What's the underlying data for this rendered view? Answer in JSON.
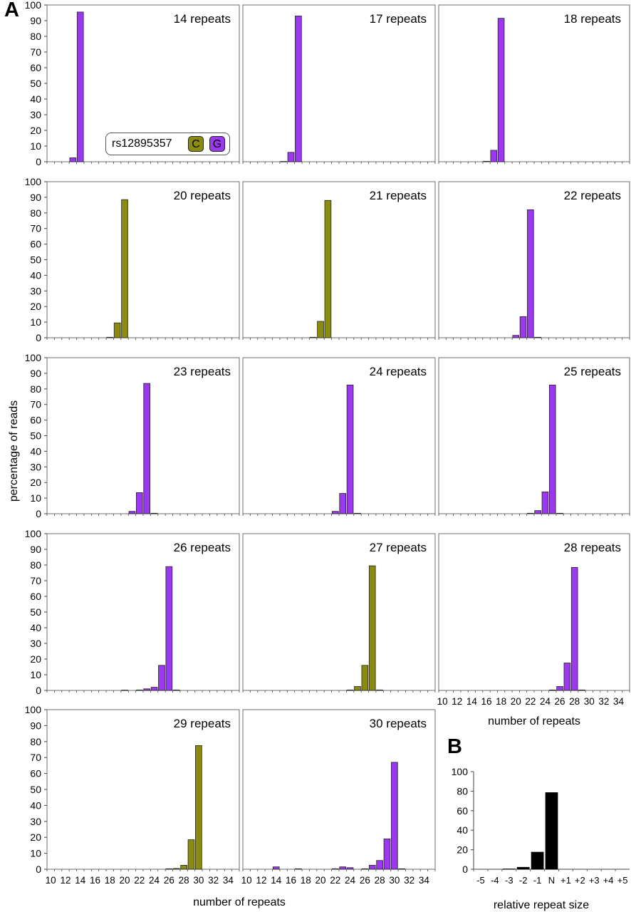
{
  "figure": {
    "panel_a_label": "A",
    "panel_b_label": "B",
    "ylabel": "percentage of reads",
    "xlabel_left": "number of repeats",
    "xlabel_middle": "number of repeats",
    "xlabel_right": "number of repeats",
    "xlabel_b": "relative repeat size"
  },
  "legend": {
    "snp": "rs12895357",
    "alleles": [
      "C",
      "G"
    ]
  },
  "colors": {
    "C": "#8b8b0f",
    "G": "#9b38f0",
    "black": "#000000"
  },
  "chart_data": [
    {
      "type": "bar",
      "title": "14 repeats",
      "allele": "G",
      "x": [
        13,
        14
      ],
      "values": [
        2.5,
        95.5
      ],
      "ylim": [
        0,
        100
      ],
      "yticks": [
        0,
        10,
        20,
        30,
        40,
        50,
        60,
        70,
        80,
        90,
        100
      ],
      "xlim": [
        10,
        35
      ]
    },
    {
      "type": "bar",
      "title": "17 repeats",
      "allele": "G",
      "x": [
        15,
        16,
        17
      ],
      "values": [
        0.2,
        6,
        93
      ],
      "ylim": [
        0,
        100
      ],
      "xlim": [
        10,
        35
      ]
    },
    {
      "type": "bar",
      "title": "18 repeats",
      "allele": "G",
      "x": [
        16,
        17,
        18
      ],
      "values": [
        0.3,
        7.3,
        91.5
      ],
      "ylim": [
        0,
        100
      ],
      "xlim": [
        10,
        35
      ]
    },
    {
      "type": "bar",
      "title": "20 repeats",
      "allele": "C",
      "x": [
        18,
        19,
        20
      ],
      "values": [
        0.3,
        9.5,
        88.5
      ],
      "ylim": [
        0,
        100
      ],
      "yticks": [
        0,
        10,
        20,
        30,
        40,
        50,
        60,
        70,
        80,
        90,
        100
      ],
      "xlim": [
        10,
        35
      ]
    },
    {
      "type": "bar",
      "title": "21 repeats",
      "allele": "C",
      "x": [
        19,
        20,
        21
      ],
      "values": [
        0.3,
        10.5,
        88
      ],
      "ylim": [
        0,
        100
      ],
      "xlim": [
        10,
        35
      ]
    },
    {
      "type": "bar",
      "title": "22 repeats",
      "allele": "G",
      "x": [
        20,
        21,
        22,
        23
      ],
      "values": [
        1.5,
        13.5,
        82,
        0.3
      ],
      "ylim": [
        0,
        100
      ],
      "xlim": [
        10,
        35
      ]
    },
    {
      "type": "bar",
      "title": "23 repeats",
      "allele": "G",
      "x": [
        21,
        22,
        23,
        24
      ],
      "values": [
        1.5,
        13.5,
        83.5,
        0.3
      ],
      "ylim": [
        0,
        100
      ],
      "yticks": [
        0,
        10,
        20,
        30,
        40,
        50,
        60,
        70,
        80,
        90,
        100
      ],
      "xlim": [
        10,
        35
      ]
    },
    {
      "type": "bar",
      "title": "24 repeats",
      "allele": "G",
      "x": [
        22,
        23,
        24,
        25
      ],
      "values": [
        1.5,
        13,
        82.5,
        0.3
      ],
      "ylim": [
        0,
        100
      ],
      "xlim": [
        10,
        35
      ]
    },
    {
      "type": "bar",
      "title": "25 repeats",
      "allele": "G",
      "x": [
        22,
        23,
        24,
        25,
        26
      ],
      "values": [
        0.3,
        2,
        14,
        82.5,
        0.3
      ],
      "ylim": [
        0,
        100
      ],
      "xlim": [
        10,
        35
      ]
    },
    {
      "type": "bar",
      "title": "26 repeats",
      "allele": "G",
      "x": [
        20,
        22,
        23,
        24,
        25,
        26,
        27
      ],
      "values": [
        0.2,
        0.3,
        1,
        2,
        16,
        79,
        0.3
      ],
      "ylim": [
        0,
        100
      ],
      "yticks": [
        0,
        10,
        20,
        30,
        40,
        50,
        60,
        70,
        80,
        90,
        100
      ],
      "xlim": [
        10,
        35
      ]
    },
    {
      "type": "bar",
      "title": "27 repeats",
      "allele": "C",
      "x": [
        24,
        25,
        26,
        27,
        28
      ],
      "values": [
        0.3,
        2.5,
        16,
        79.5,
        0.3
      ],
      "ylim": [
        0,
        100
      ],
      "xlim": [
        10,
        35
      ]
    },
    {
      "type": "bar",
      "title": "28 repeats",
      "allele": "G",
      "x": [
        25,
        26,
        27,
        28,
        29
      ],
      "values": [
        0.3,
        2.5,
        17.5,
        78.5,
        0.3
      ],
      "ylim": [
        0,
        100
      ],
      "xlim": [
        10,
        35
      ],
      "xticks": [
        10,
        12,
        14,
        16,
        18,
        20,
        22,
        24,
        26,
        28,
        30,
        32,
        34
      ]
    },
    {
      "type": "bar",
      "title": "29 repeats",
      "allele": "C",
      "x": [
        26,
        27,
        28,
        29,
        30
      ],
      "values": [
        0.3,
        0.5,
        2.5,
        18.5,
        77.5
      ],
      "ylim": [
        0,
        100
      ],
      "yticks": [
        0,
        10,
        20,
        30,
        40,
        50,
        60,
        70,
        80,
        90,
        100
      ],
      "xlim": [
        10,
        35
      ],
      "xticks": [
        10,
        12,
        14,
        16,
        18,
        20,
        22,
        24,
        26,
        28,
        30,
        32,
        34
      ]
    },
    {
      "type": "bar",
      "title": "30 repeats",
      "allele": "G",
      "x": [
        14,
        17,
        22,
        23,
        24,
        26,
        27,
        28,
        29,
        30,
        31
      ],
      "values": [
        1.5,
        0.3,
        0.3,
        1.5,
        1,
        0.3,
        2.5,
        5.5,
        19,
        67,
        0.3
      ],
      "ylim": [
        0,
        100
      ],
      "xlim": [
        10,
        35
      ],
      "xticks": [
        10,
        12,
        14,
        16,
        18,
        20,
        22,
        24,
        26,
        28,
        30,
        32,
        34
      ]
    },
    {
      "type": "bar",
      "panel": "B",
      "allele": "black",
      "categories": [
        "-5",
        "-4",
        "-3",
        "-2",
        "-1",
        "N",
        "+1",
        "+2",
        "+3",
        "+4",
        "+5"
      ],
      "values": [
        0,
        0,
        0.3,
        2,
        17.5,
        78.5,
        0,
        0,
        0,
        0,
        0
      ],
      "ylim": [
        0,
        100
      ],
      "yticks": [
        0,
        20,
        40,
        60,
        80,
        100
      ],
      "xlabel": "relative repeat size"
    }
  ]
}
